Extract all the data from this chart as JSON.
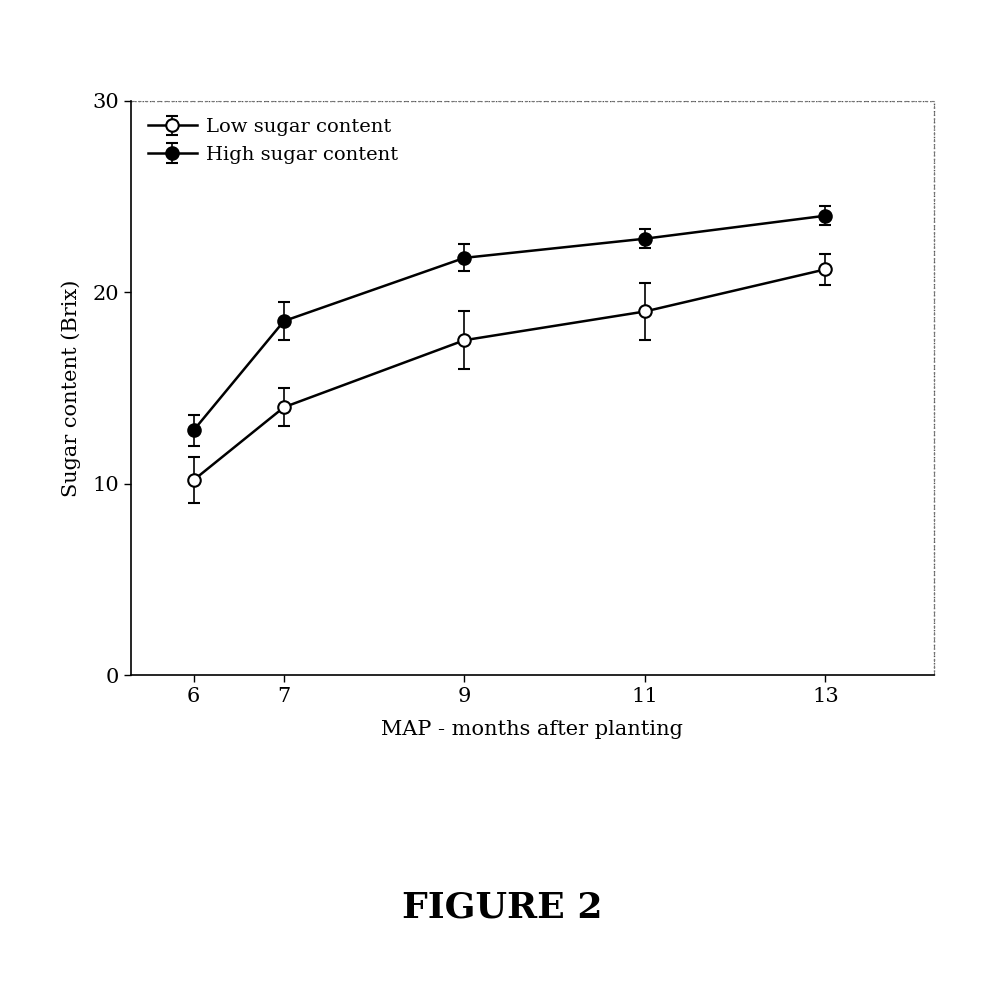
{
  "x": [
    6,
    7,
    9,
    11,
    13
  ],
  "low_sugar_y": [
    10.2,
    14.0,
    17.5,
    19.0,
    21.2
  ],
  "low_sugar_yerr": [
    1.2,
    1.0,
    1.5,
    1.5,
    0.8
  ],
  "high_sugar_y": [
    12.8,
    18.5,
    21.8,
    22.8,
    24.0
  ],
  "high_sugar_yerr": [
    0.8,
    1.0,
    0.7,
    0.5,
    0.5
  ],
  "xlabel": "MAP - months after planting",
  "ylabel": "Sugar content (Brix)",
  "ylim": [
    0,
    30
  ],
  "yticks": [
    0,
    10,
    20,
    30
  ],
  "xticks": [
    6,
    7,
    9,
    11,
    13
  ],
  "low_label": "Low sugar content",
  "high_label": "High sugar content",
  "figure_label": "FIGURE 2",
  "line_color": "#000000",
  "low_marker": "o",
  "high_marker": "o",
  "low_markerfacecolor": "#ffffff",
  "high_markerfacecolor": "#000000",
  "markersize": 9,
  "linewidth": 1.8,
  "capsize": 4,
  "title_fontsize": 26,
  "label_fontsize": 15,
  "tick_fontsize": 15,
  "legend_fontsize": 14,
  "background_color": "#ffffff"
}
